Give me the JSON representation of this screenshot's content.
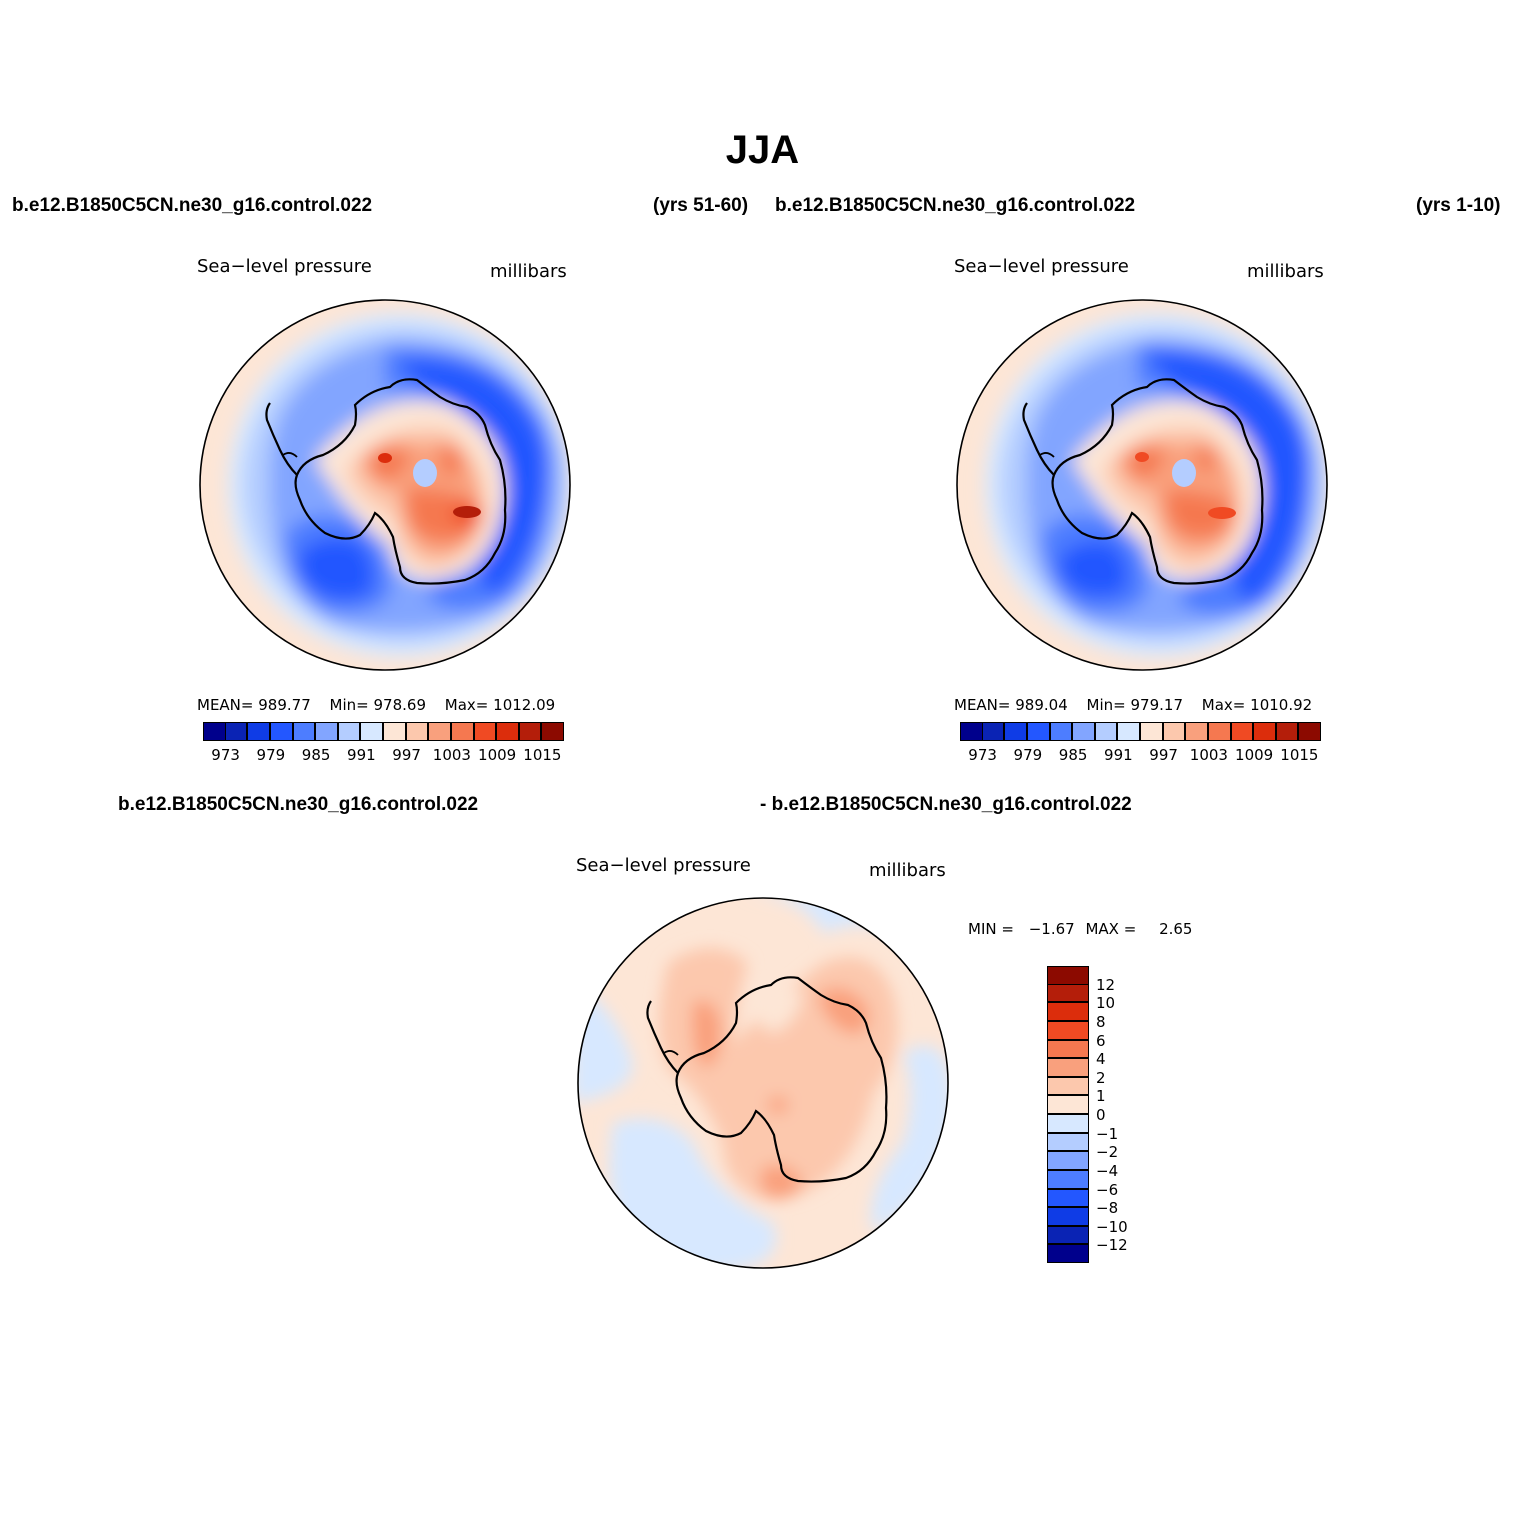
{
  "figure": {
    "title": "JJA",
    "palette_pressure": [
      "#00008c",
      "#0a23b4",
      "#0f3ce6",
      "#2357ff",
      "#4d7dff",
      "#82a5ff",
      "#b4cdff",
      "#d7e8ff",
      "#fde6d6",
      "#fcc8ad",
      "#f9a07d",
      "#f57850",
      "#f04a23",
      "#dc2d0c",
      "#b41e0a",
      "#8c0a00"
    ],
    "palette_diff": [
      "#00008c",
      "#0a23b4",
      "#0f3ce6",
      "#2357ff",
      "#4d7dff",
      "#82a5ff",
      "#b4cdff",
      "#d7e8ff",
      "#fde6d6",
      "#fcc8ad",
      "#f9a07d",
      "#f57850",
      "#f04a23",
      "#dc2d0c",
      "#b41e0a",
      "#8c0a00"
    ]
  },
  "panel_a": {
    "case": "b.e12.B1850C5CN.ne30_g16.control.022",
    "years": "(yrs 51-60)",
    "variable": "Sea−level pressure",
    "units": "millibars",
    "mean_label": "MEAN=",
    "mean": "989.77",
    "min_label": "Min=",
    "min": "978.69",
    "max_label": "Max=",
    "max": "1012.09",
    "colorbar_ticks": [
      "973",
      "979",
      "985",
      "991",
      "997",
      "1003",
      "1009",
      "1015"
    ]
  },
  "panel_b": {
    "case": "b.e12.B1850C5CN.ne30_g16.control.022",
    "years": "(yrs 1-10)",
    "variable": "Sea−level pressure",
    "units": "millibars",
    "mean_label": "MEAN=",
    "mean": "989.04",
    "min_label": "Min=",
    "min": "979.17",
    "max_label": "Max=",
    "max": "1010.92",
    "colorbar_ticks": [
      "973",
      "979",
      "985",
      "991",
      "997",
      "1003",
      "1009",
      "1015"
    ]
  },
  "panel_diff": {
    "case_left": "b.e12.B1850C5CN.ne30_g16.control.022",
    "case_right": "- b.e12.B1850C5CN.ne30_g16.control.022",
    "variable": "Sea−level pressure",
    "units": "millibars",
    "min_label": "MIN =",
    "min": "−1.67",
    "max_label": "MAX =",
    "max": "2.65",
    "colorbar_ticks": [
      "12",
      "10",
      "8",
      "6",
      "4",
      "2",
      "1",
      "0",
      "−1",
      "−2",
      "−4",
      "−6",
      "−8",
      "−10",
      "−12"
    ]
  }
}
